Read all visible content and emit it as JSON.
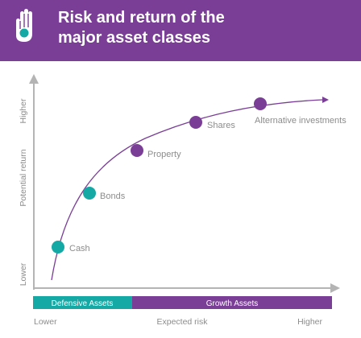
{
  "colors": {
    "header_bg": "#7b3e97",
    "defensive": "#15a9a6",
    "growth": "#7b3e97",
    "axis": "#b4b4b4",
    "label": "#8c8c8c",
    "curve": "#7b3e97"
  },
  "header": {
    "icon": "hand-icon",
    "title_line1": "Risk and return of the",
    "title_line2": "major asset classes"
  },
  "axes": {
    "y_label": "Potential return",
    "y_high": "Higher",
    "y_low": "Lower",
    "x_label": "Expected risk",
    "x_low": "Lower",
    "x_high": "Higher"
  },
  "assets": [
    {
      "name": "Cash",
      "group": "defensive"
    },
    {
      "name": "Bonds",
      "group": "defensive"
    },
    {
      "name": "Property",
      "group": "growth"
    },
    {
      "name": "Shares",
      "group": "growth"
    },
    {
      "name": "Alternative investments",
      "group": "growth"
    }
  ],
  "bands": {
    "defensive": "Defensive Assets",
    "growth": "Growth Assets"
  }
}
